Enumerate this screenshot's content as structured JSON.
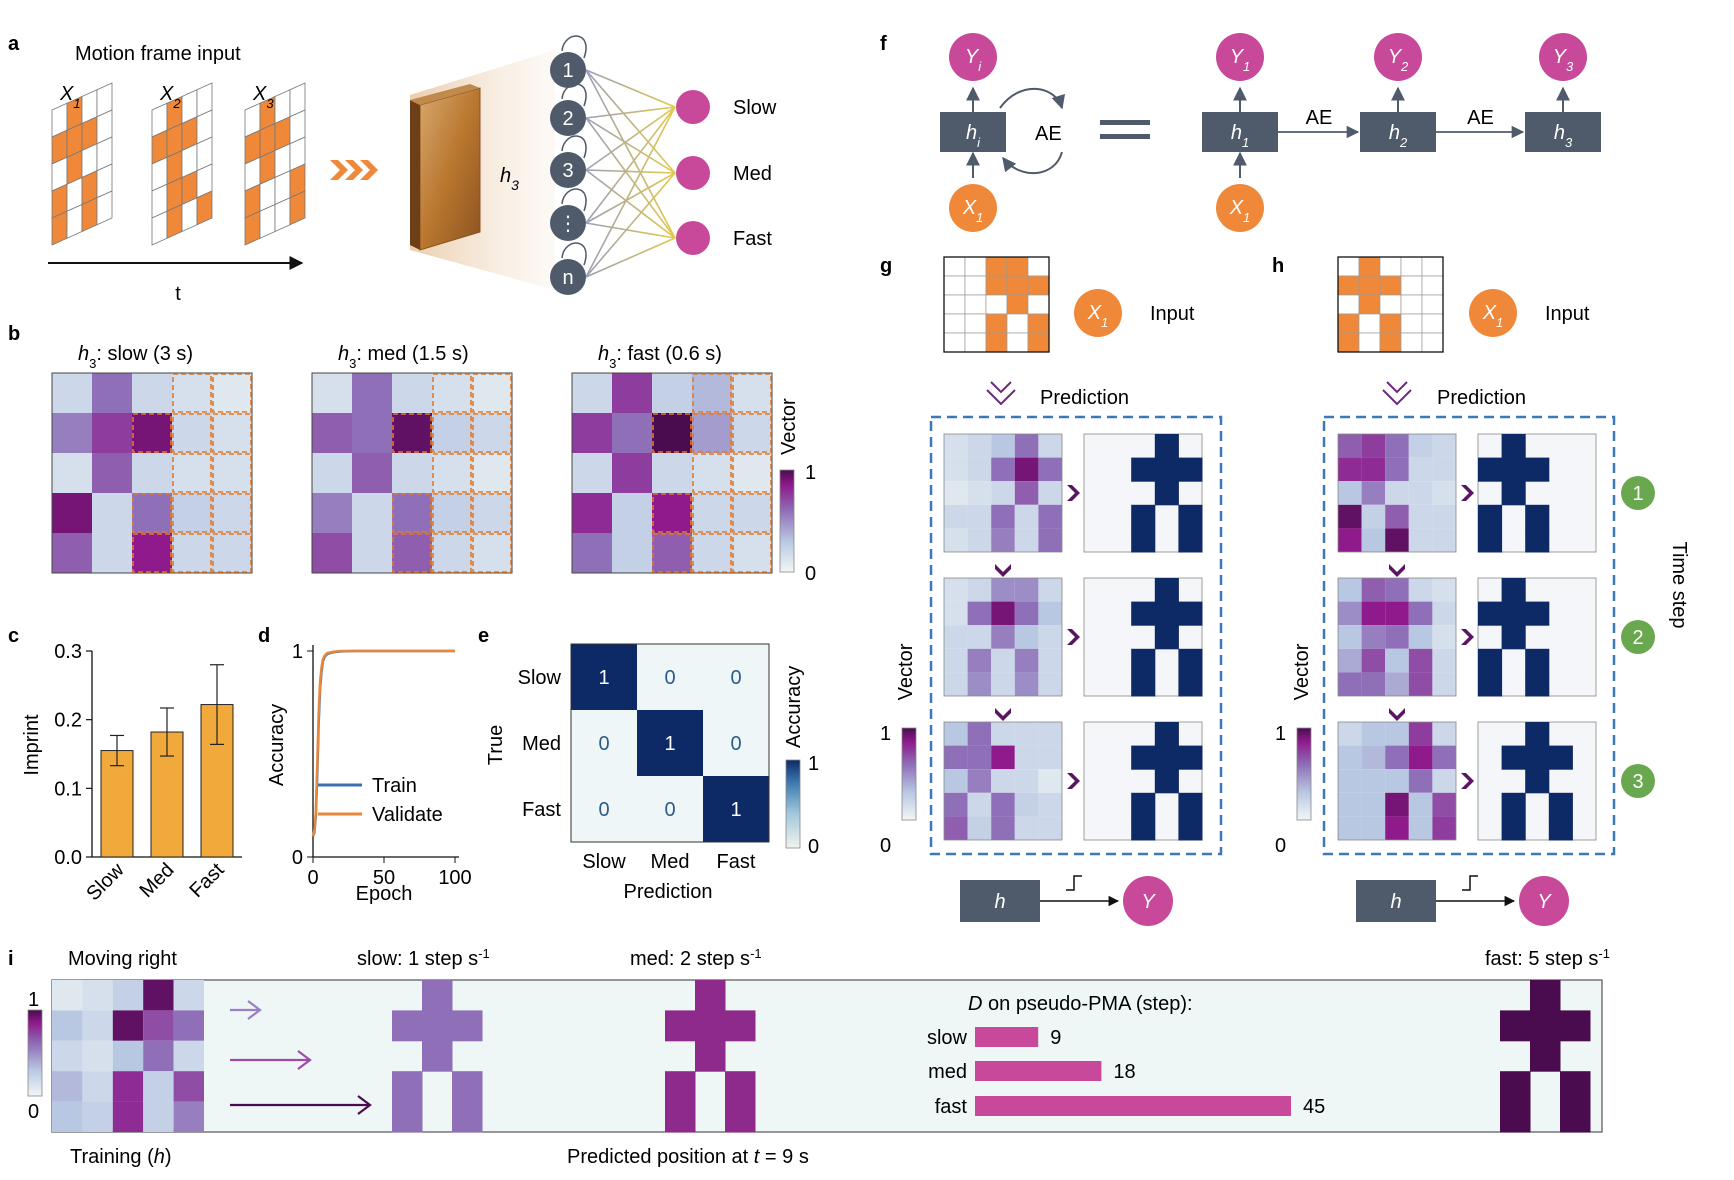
{
  "panel_labels": {
    "a": "a",
    "b": "b",
    "c": "c",
    "d": "d",
    "e": "e",
    "f": "f",
    "g": "g",
    "h": "h",
    "i": "i"
  },
  "colors": {
    "orange": "#f0883a",
    "bar_orange": "#f2a93b",
    "node_gray": "#4f5a6b",
    "magenta": "#c8489a",
    "navy": "#0e2a66",
    "dash_blue": "#3f78b8",
    "green": "#6aa84f",
    "train_blue": "#3a6fb0",
    "validate_orange": "#e8873a",
    "dark_purple": "#4a0c4e",
    "light_bg": "#eef6f6"
  },
  "panel_a": {
    "title": "Motion frame input",
    "frames": [
      {
        "label": "X",
        "sub": "1"
      },
      {
        "label": "X",
        "sub": "2"
      },
      {
        "label": "X",
        "sub": "3"
      }
    ],
    "time_label": "t",
    "h_label": "h",
    "h_sub": "3",
    "nodes": [
      "1",
      "2",
      "3",
      "⋮",
      "n"
    ],
    "outputs": [
      "Slow",
      "Med",
      "Fast"
    ]
  },
  "panel_b": {
    "maps": [
      {
        "prefix": "h",
        "sub": "3",
        "label": ": slow (3 s)"
      },
      {
        "prefix": "h",
        "sub": "3",
        "label": ": med (1.5 s)"
      },
      {
        "prefix": "h",
        "sub": "3",
        "label": ": fast (0.6 s)"
      }
    ],
    "colorbar_title": "Vector",
    "colorbar_max": "1",
    "colorbar_min": "0"
  },
  "chart_data": [
    {
      "type": "bar",
      "panel": "c",
      "categories": [
        "Slow",
        "Med",
        "Fast"
      ],
      "values": [
        0.155,
        0.182,
        0.222
      ],
      "errors": [
        0.022,
        0.035,
        0.058
      ],
      "ylabel": "Imprint",
      "ylim": [
        0,
        0.3
      ],
      "yticks": [
        "0.0",
        "0.1",
        "0.2",
        "0.3"
      ]
    },
    {
      "type": "line",
      "panel": "d",
      "xlabel": "Epoch",
      "ylabel": "Accuracy",
      "xlim": [
        0,
        100
      ],
      "ylim": [
        0,
        1
      ],
      "xticks": [
        "0",
        "50",
        "100"
      ],
      "yticks": [
        "0",
        "1"
      ],
      "series": [
        {
          "name": "Train",
          "x": [
            0,
            1,
            2,
            3,
            4,
            5,
            6,
            7,
            8,
            10,
            12,
            15,
            20,
            30,
            50,
            100
          ],
          "y": [
            0.1,
            0.12,
            0.2,
            0.4,
            0.65,
            0.82,
            0.9,
            0.95,
            0.97,
            0.985,
            0.99,
            0.995,
            0.998,
            1,
            1,
            1
          ]
        },
        {
          "name": "Validate",
          "x": [
            0,
            1,
            2,
            3,
            4,
            5,
            6,
            7,
            8,
            10,
            12,
            15,
            20,
            30,
            50,
            100
          ],
          "y": [
            0.1,
            0.13,
            0.22,
            0.45,
            0.7,
            0.85,
            0.92,
            0.96,
            0.975,
            0.99,
            0.993,
            0.997,
            1,
            1,
            1,
            1
          ]
        }
      ]
    },
    {
      "type": "heatmap",
      "panel": "e",
      "xlabel": "Prediction",
      "ylabel": "True",
      "x_categories": [
        "Slow",
        "Med",
        "Fast"
      ],
      "y_categories": [
        "Slow",
        "Med",
        "Fast"
      ],
      "values": [
        [
          1,
          0,
          0
        ],
        [
          0,
          1,
          0
        ],
        [
          0,
          0,
          1
        ]
      ],
      "colorbar_title": "Accuracy",
      "colorbar_max": "1",
      "colorbar_min": "0"
    },
    {
      "type": "bar",
      "panel": "i",
      "orientation": "horizontal",
      "title_prefix": "D",
      "title": " on pseudo-PMA (step):",
      "categories": [
        "slow",
        "med",
        "fast"
      ],
      "values": [
        9,
        18,
        45
      ]
    }
  ],
  "panel_f": {
    "left": {
      "y": "Y",
      "y_sub": "i",
      "h": "h",
      "h_sub": "i",
      "x": "X",
      "x_sub": "1",
      "loop": "AE"
    },
    "right": {
      "ys": [
        {
          "t": "Y",
          "s": "1"
        },
        {
          "t": "Y",
          "s": "2"
        },
        {
          "t": "Y",
          "s": "3"
        }
      ],
      "hs": [
        {
          "t": "h",
          "s": "1"
        },
        {
          "t": "h",
          "s": "2"
        },
        {
          "t": "h",
          "s": "3"
        }
      ],
      "x": {
        "t": "X",
        "s": "1"
      },
      "arrows": [
        "AE",
        "AE"
      ]
    }
  },
  "panel_g": {
    "input_label": "Input",
    "x_label": "X",
    "x_sub": "1",
    "prediction_label": "Prediction",
    "vector_label": "Vector",
    "colorbar_max": "1",
    "colorbar_min": "0",
    "h_label": "h",
    "y_label": "Y"
  },
  "panel_h": {
    "input_label": "Input",
    "x_label": "X",
    "x_sub": "1",
    "prediction_label": "Prediction",
    "vector_label": "Vector",
    "colorbar_max": "1",
    "colorbar_min": "0",
    "h_label": "h",
    "y_label": "Y",
    "time_step_label": "Time step",
    "steps": [
      "1",
      "2",
      "3"
    ]
  },
  "panel_i": {
    "moving_label": "Moving right",
    "training_prefix": "Training (",
    "training_h": "h",
    "training_suffix": ")",
    "predicted_prefix": "Predicted position at ",
    "predicted_t": "t",
    "predicted_suffix": " = 9 s",
    "slow_rate": "slow: 1 step s",
    "med_rate": "med: 2 step s",
    "fast_rate": "fast: 5 step s",
    "rate_exp": "-1",
    "colorbar_max": "1",
    "colorbar_min": "0"
  }
}
